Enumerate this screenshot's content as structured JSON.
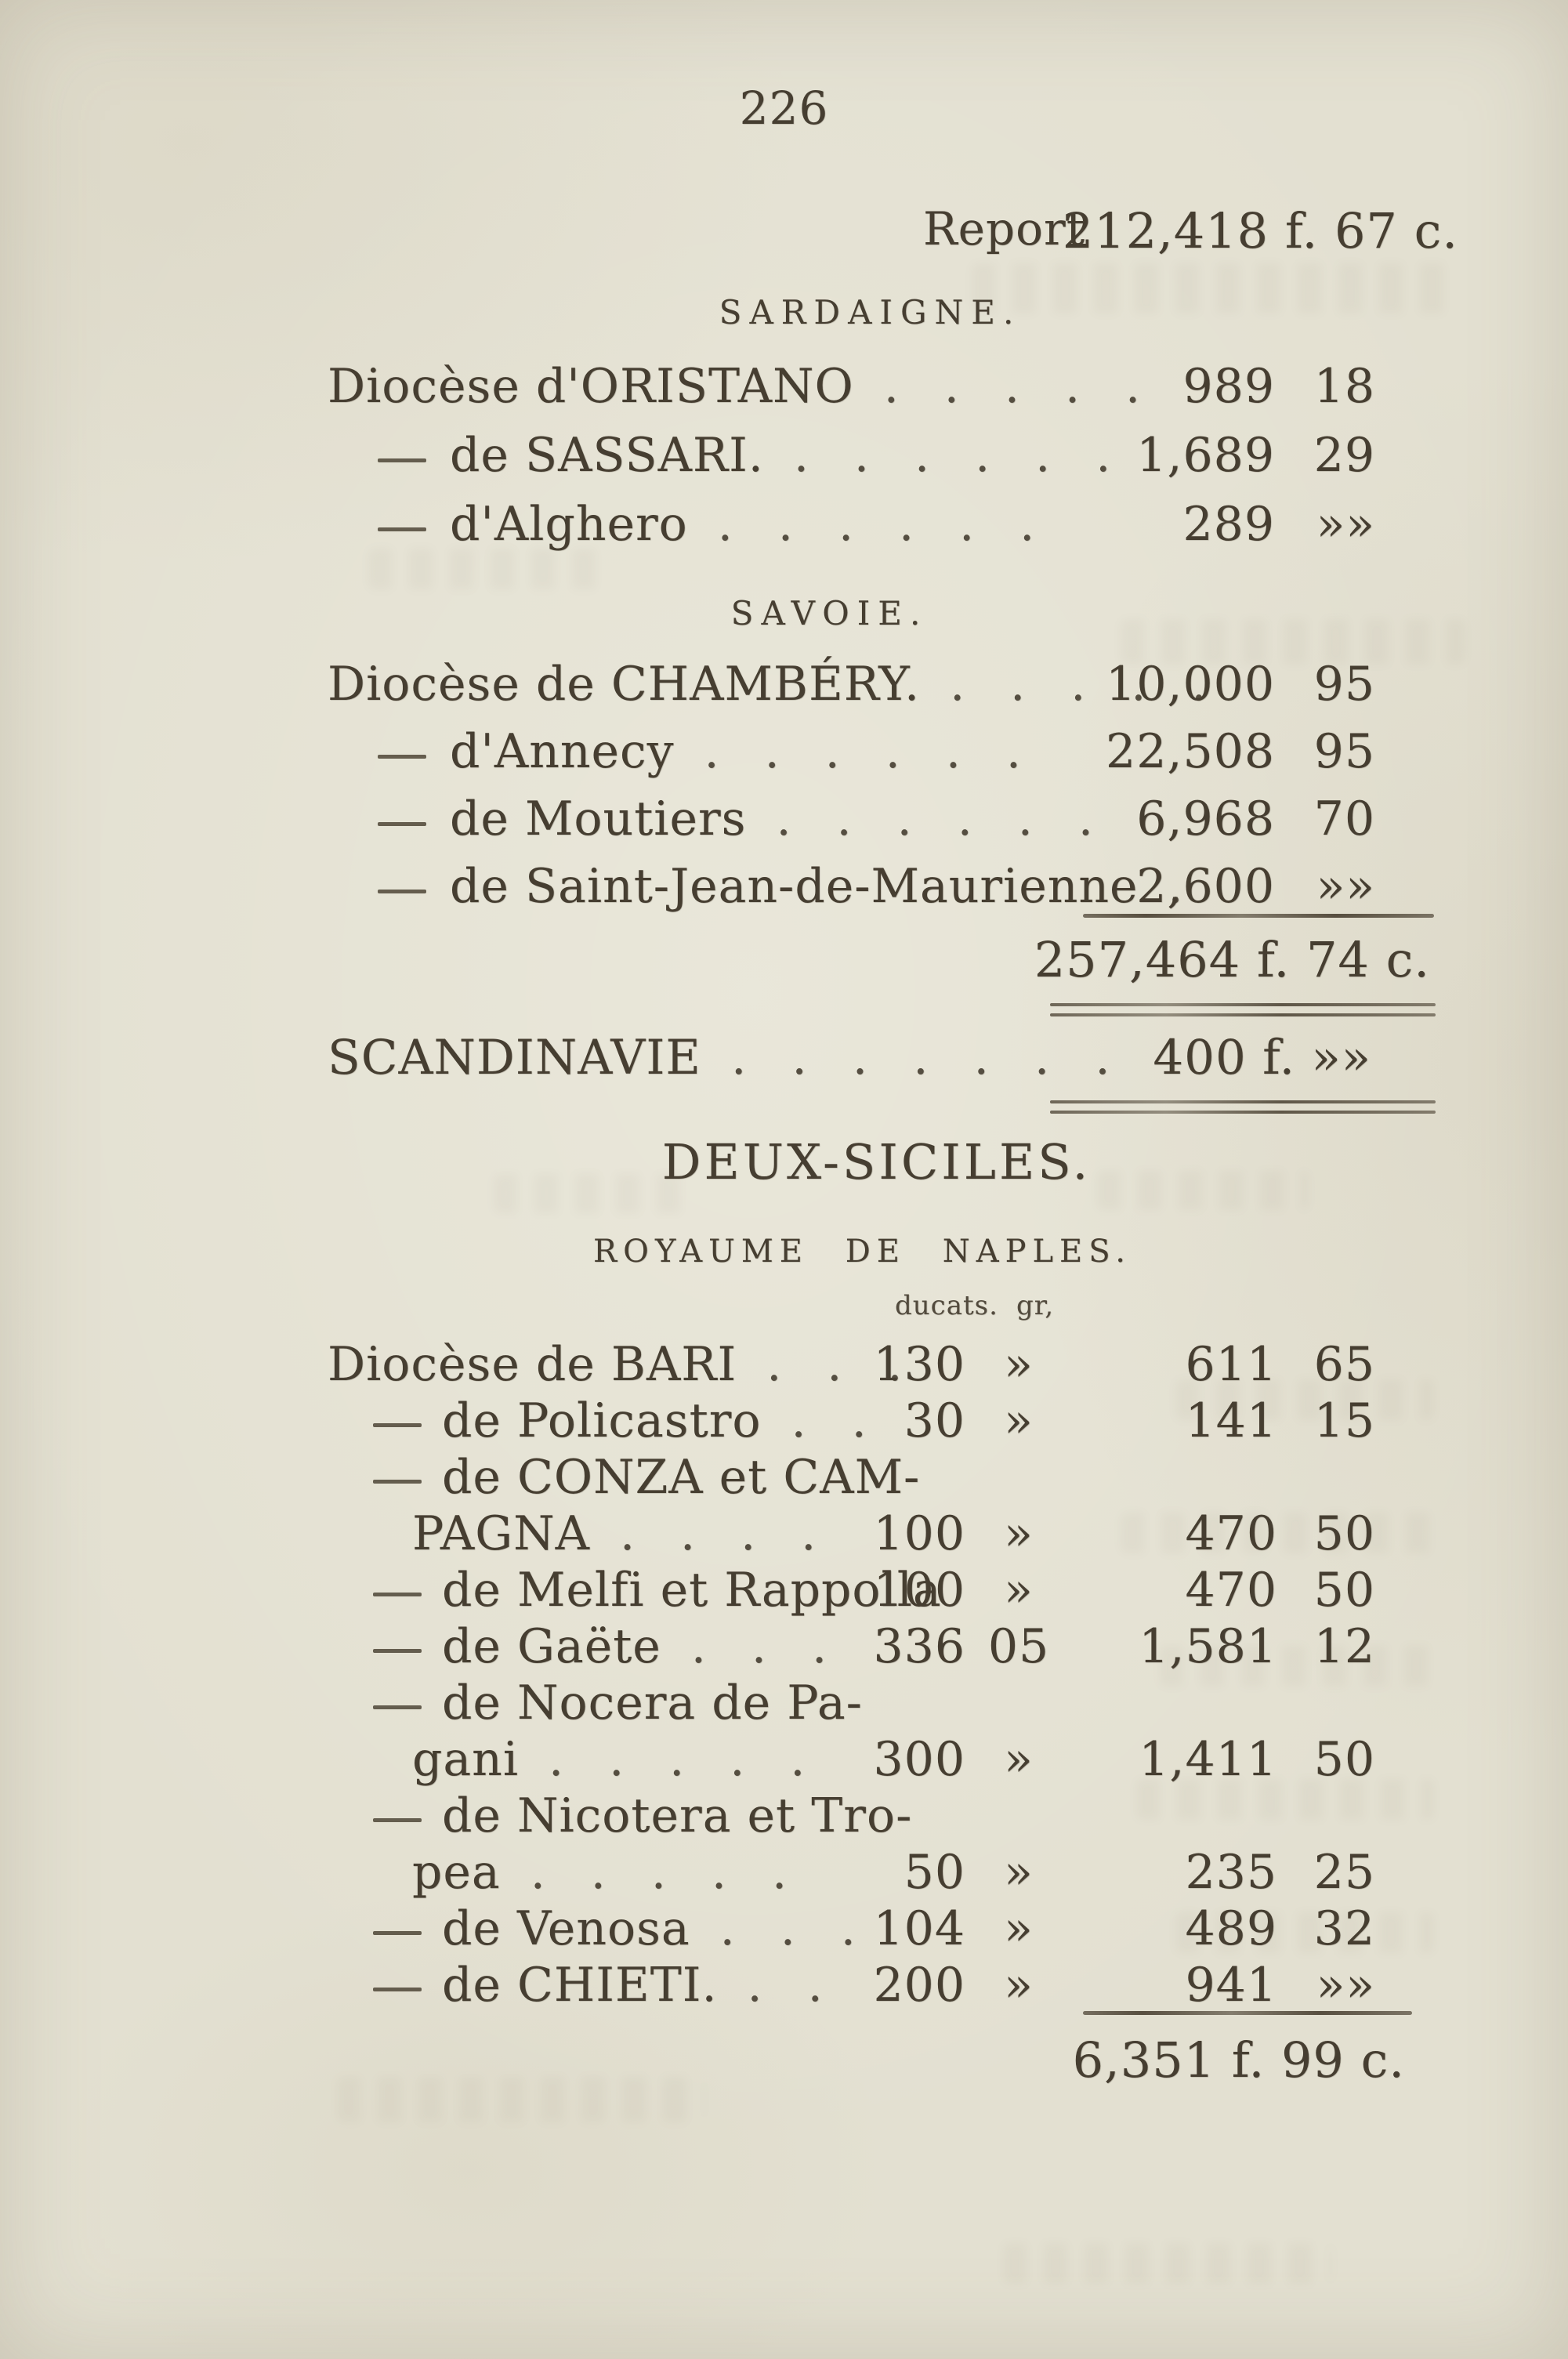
{
  "page": {
    "number": "226"
  },
  "report": {
    "label": "Report",
    "amount": "212,418 f. 67 c."
  },
  "sections": [
    {
      "title": "SARDAIGNE.",
      "rows": [
        {
          "dash": false,
          "label": "Diocèse d'ORISTANO",
          "dots": 5,
          "francs": "989",
          "cents": "18"
        },
        {
          "dash": true,
          "label": "de SASSARI.",
          "dots": 6,
          "francs": "1,689",
          "cents": "29"
        },
        {
          "dash": true,
          "label": "d'Alghero",
          "dots": 6,
          "francs": "289",
          "cents": "»»"
        }
      ]
    },
    {
      "title": "SAVOIE.",
      "rows": [
        {
          "dash": false,
          "label": "Diocèse de CHAMBÉRY.",
          "dots": 5,
          "francs": "10,000",
          "cents": "95"
        },
        {
          "dash": true,
          "label": "d'Annecy",
          "dots": 6,
          "francs": "22,508",
          "cents": "95"
        },
        {
          "dash": true,
          "label": "de Moutiers",
          "dots": 6,
          "francs": "6,968",
          "cents": "70"
        },
        {
          "dash": true,
          "label": "de Saint-Jean-de-Maurienne",
          "dots": 1,
          "francs": "2,600",
          "cents": "»»"
        }
      ]
    }
  ],
  "subtotal": {
    "amount": "257,464 f. 74 c."
  },
  "scandinavie": {
    "label": "SCANDINAVIE",
    "dots": 7,
    "amount": "400 f. »»"
  },
  "deux_siciles": {
    "title": "DEUX-SICILES.",
    "subtitle": "ROYAUME DE NAPLES.",
    "columns": {
      "ducats": "ducats.",
      "grains": "gr,"
    },
    "rows": [
      {
        "dash": false,
        "lines": [
          "Diocèse de BARI"
        ],
        "dots": 3,
        "ducats": "130",
        "grains": "»",
        "francs": "611",
        "cents": "65"
      },
      {
        "dash": true,
        "lines": [
          "de Policastro"
        ],
        "dots": 2,
        "ducats": "30",
        "grains": "»",
        "francs": "141",
        "cents": "15"
      },
      {
        "dash": true,
        "lines": [
          "de CONZA et CAM-",
          "PAGNA"
        ],
        "dots": 4,
        "ducats": "100",
        "grains": "»",
        "francs": "470",
        "cents": "50"
      },
      {
        "dash": true,
        "lines": [
          "de Melfi et Rappolla"
        ],
        "dots": 0,
        "ducats": "100",
        "grains": "»",
        "francs": "470",
        "cents": "50"
      },
      {
        "dash": true,
        "lines": [
          "de Gaëte"
        ],
        "dots": 3,
        "ducats": "336",
        "grains": "05",
        "francs": "1,581",
        "cents": "12"
      },
      {
        "dash": true,
        "lines": [
          "de Nocera de Pa-",
          "gani"
        ],
        "dots": 5,
        "ducats": "300",
        "grains": "»",
        "francs": "1,411",
        "cents": "50"
      },
      {
        "dash": true,
        "lines": [
          "de Nicotera et Tro-",
          "pea"
        ],
        "dots": 5,
        "ducats": "50",
        "grains": "»",
        "francs": "235",
        "cents": "25"
      },
      {
        "dash": true,
        "lines": [
          "de Venosa"
        ],
        "dots": 3,
        "ducats": "104",
        "grains": "»",
        "francs": "489",
        "cents": "32"
      },
      {
        "dash": true,
        "lines": [
          "de CHIETI."
        ],
        "dots": 2,
        "ducats": "200",
        "grains": "»",
        "francs": "941",
        "cents": "»»"
      }
    ],
    "total": "6,351 f. 99 c."
  }
}
